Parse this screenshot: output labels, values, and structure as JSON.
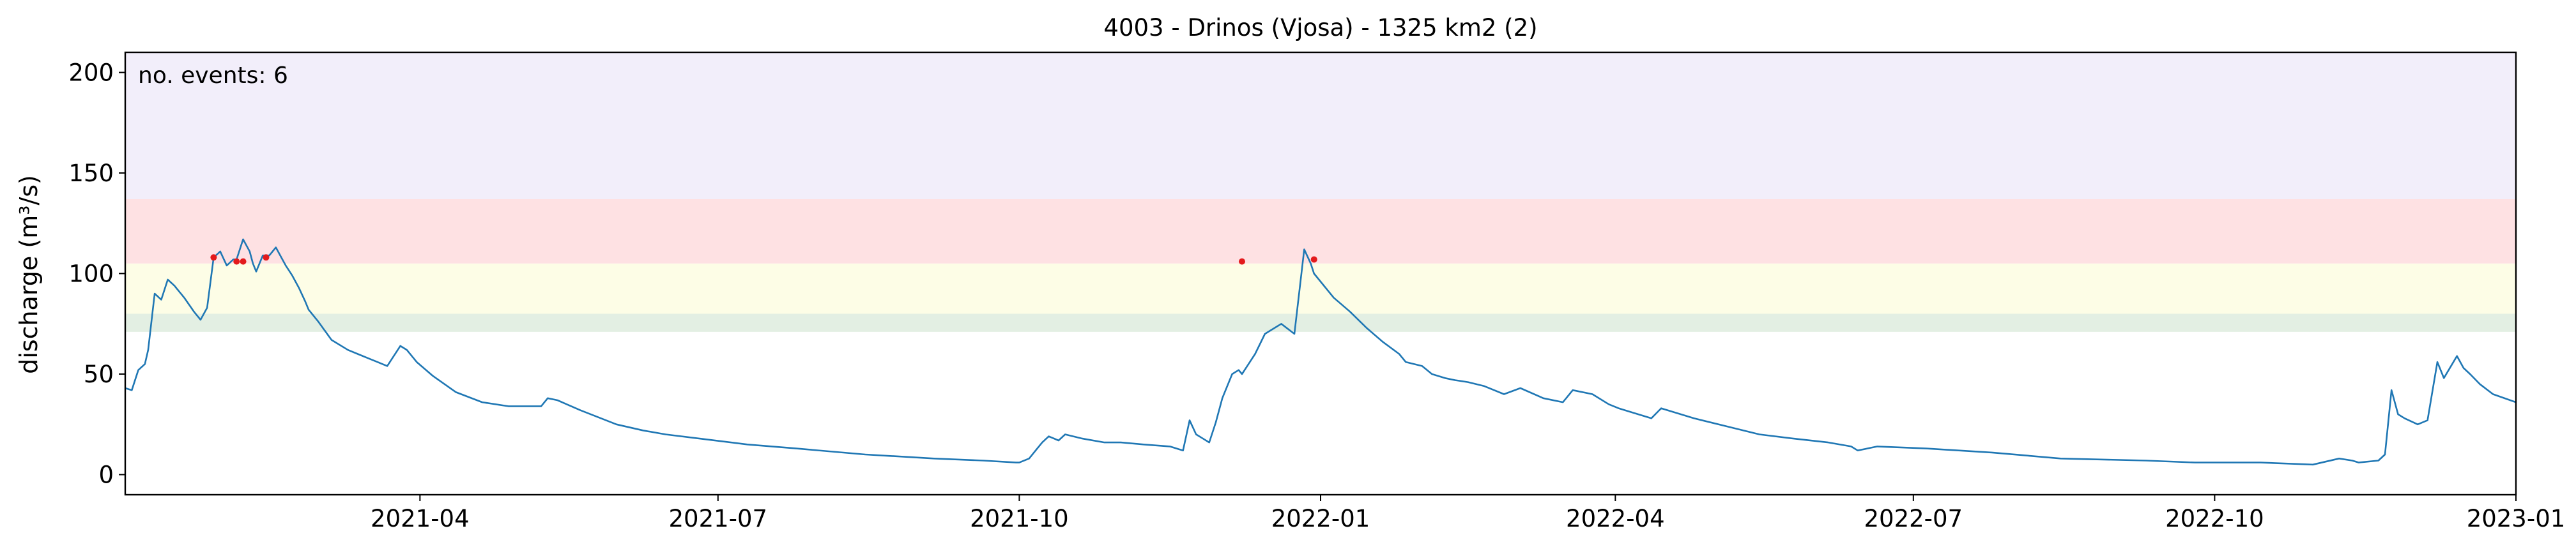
{
  "chart_data": {
    "type": "line",
    "title": "4003 - Drinos (Vjosa) - 1325 km2 (2)",
    "xlabel": "",
    "ylabel": "discharge (m³/s)",
    "annotation": "no. events: 6",
    "xlim": [
      "2021-01-01",
      "2023-01-01"
    ],
    "ylim": [
      -10,
      210
    ],
    "xticks": [
      "2021-04-01",
      "2021-07-01",
      "2021-10-01",
      "2022-01-01",
      "2022-04-01",
      "2022-07-01",
      "2022-10-01",
      "2023-01-01"
    ],
    "xtick_labels": [
      "2021-04",
      "2021-07",
      "2021-10",
      "2022-01",
      "2022-04",
      "2022-07",
      "2022-10",
      "2023-01"
    ],
    "yticks": [
      0,
      50,
      100,
      150,
      200
    ],
    "grid": false,
    "colors": {
      "line": "#1f77b4",
      "events": "#e31a1c",
      "annotation": "#d50000"
    },
    "bands": [
      {
        "from": 71,
        "to": 80,
        "color": "#e3efe3"
      },
      {
        "from": 80,
        "to": 105,
        "color": "#fdfde6"
      },
      {
        "from": 105,
        "to": 137,
        "color": "#fee1e3"
      },
      {
        "from": 137,
        "to": 210,
        "color": "#f2eefa"
      }
    ],
    "series": [
      {
        "x": [
          "2021-01-01",
          "2021-01-03",
          "2021-01-05",
          "2021-01-07",
          "2021-01-08",
          "2021-01-10",
          "2021-01-12",
          "2021-01-14",
          "2021-01-16",
          "2021-01-19",
          "2021-01-22",
          "2021-01-24",
          "2021-01-26",
          "2021-01-28",
          "2021-01-30",
          "2021-02-01",
          "2021-02-03",
          "2021-02-04",
          "2021-02-06",
          "2021-02-08",
          "2021-02-09",
          "2021-02-10",
          "2021-02-12",
          "2021-02-14",
          "2021-02-16",
          "2021-02-18",
          "2021-02-19",
          "2021-02-21",
          "2021-02-23",
          "2021-02-25",
          "2021-02-26",
          "2021-03-01",
          "2021-03-05",
          "2021-03-10",
          "2021-03-13",
          "2021-03-16",
          "2021-03-19",
          "2021-03-22",
          "2021-03-26",
          "2021-03-28",
          "2021-03-31",
          "2021-04-05",
          "2021-04-12",
          "2021-04-20",
          "2021-04-28",
          "2021-05-08",
          "2021-05-10",
          "2021-05-13",
          "2021-05-20",
          "2021-05-31",
          "2021-06-08",
          "2021-06-15",
          "2021-06-25",
          "2021-07-10",
          "2021-07-25",
          "2021-08-15",
          "2021-09-05",
          "2021-09-20",
          "2021-09-30",
          "2021-10-01",
          "2021-10-04",
          "2021-10-06",
          "2021-10-08",
          "2021-10-10",
          "2021-10-13",
          "2021-10-15",
          "2021-10-20",
          "2021-10-27",
          "2021-11-01",
          "2021-11-08",
          "2021-11-16",
          "2021-11-20",
          "2021-11-22",
          "2021-11-24",
          "2021-11-26",
          "2021-11-28",
          "2021-11-30",
          "2021-12-02",
          "2021-12-05",
          "2021-12-07",
          "2021-12-08",
          "2021-12-10",
          "2021-12-12",
          "2021-12-15",
          "2021-12-20",
          "2021-12-24",
          "2021-12-27",
          "2021-12-29",
          "2021-12-30",
          "2022-01-05",
          "2022-01-10",
          "2022-01-15",
          "2022-01-20",
          "2022-01-25",
          "2022-01-27",
          "2022-02-01",
          "2022-02-04",
          "2022-02-08",
          "2022-02-11",
          "2022-02-15",
          "2022-02-20",
          "2022-02-26",
          "2022-03-03",
          "2022-03-10",
          "2022-03-16",
          "2022-03-19",
          "2022-03-25",
          "2022-03-30",
          "2022-04-02",
          "2022-04-08",
          "2022-04-12",
          "2022-04-15",
          "2022-04-25",
          "2022-05-05",
          "2022-05-15",
          "2022-05-25",
          "2022-06-05",
          "2022-06-12",
          "2022-06-14",
          "2022-06-20",
          "2022-07-05",
          "2022-07-25",
          "2022-08-15",
          "2022-09-10",
          "2022-09-25",
          "2022-10-01",
          "2022-10-15",
          "2022-10-31",
          "2022-11-08",
          "2022-11-12",
          "2022-11-14",
          "2022-11-20",
          "2022-11-22",
          "2022-11-24",
          "2022-11-26",
          "2022-11-28",
          "2022-12-02",
          "2022-12-05",
          "2022-12-08",
          "2022-12-10",
          "2022-12-14",
          "2022-12-16",
          "2022-12-18",
          "2022-12-21",
          "2022-12-25",
          "2023-01-01"
        ],
        "y": [
          43,
          42,
          52,
          55,
          62,
          90,
          87,
          97,
          94,
          88,
          81,
          77,
          83,
          108,
          111,
          104,
          107,
          107,
          117,
          111,
          105,
          101,
          109,
          109,
          113,
          107,
          104,
          99,
          93,
          86,
          82,
          76,
          67,
          62,
          60,
          58,
          56,
          54,
          64,
          62,
          56,
          49,
          41,
          36,
          34,
          34,
          38,
          37,
          32,
          25,
          22,
          20,
          18,
          15,
          13,
          10,
          8,
          7,
          6,
          6,
          8,
          12,
          16,
          19,
          17,
          20,
          18,
          16,
          16,
          15,
          14,
          12,
          27,
          20,
          18,
          16,
          26,
          38,
          50,
          52,
          50,
          55,
          60,
          70,
          75,
          70,
          112,
          105,
          100,
          88,
          81,
          73,
          66,
          60,
          56,
          54,
          50,
          48,
          47,
          46,
          44,
          40,
          43,
          38,
          36,
          42,
          40,
          35,
          33,
          30,
          28,
          33,
          28,
          24,
          20,
          18,
          16,
          14,
          12,
          14,
          13,
          11,
          8,
          7,
          6,
          6,
          6,
          5,
          8,
          7,
          6,
          7,
          10,
          42,
          30,
          28,
          25,
          27,
          56,
          48,
          59,
          53,
          50,
          45,
          40,
          36
        ]
      }
    ],
    "events": {
      "x": [
        "2021-01-28",
        "2021-02-04",
        "2021-02-06",
        "2021-02-13",
        "2021-12-08",
        "2021-12-30"
      ],
      "y": [
        108,
        106,
        106,
        108,
        106,
        107
      ]
    }
  }
}
